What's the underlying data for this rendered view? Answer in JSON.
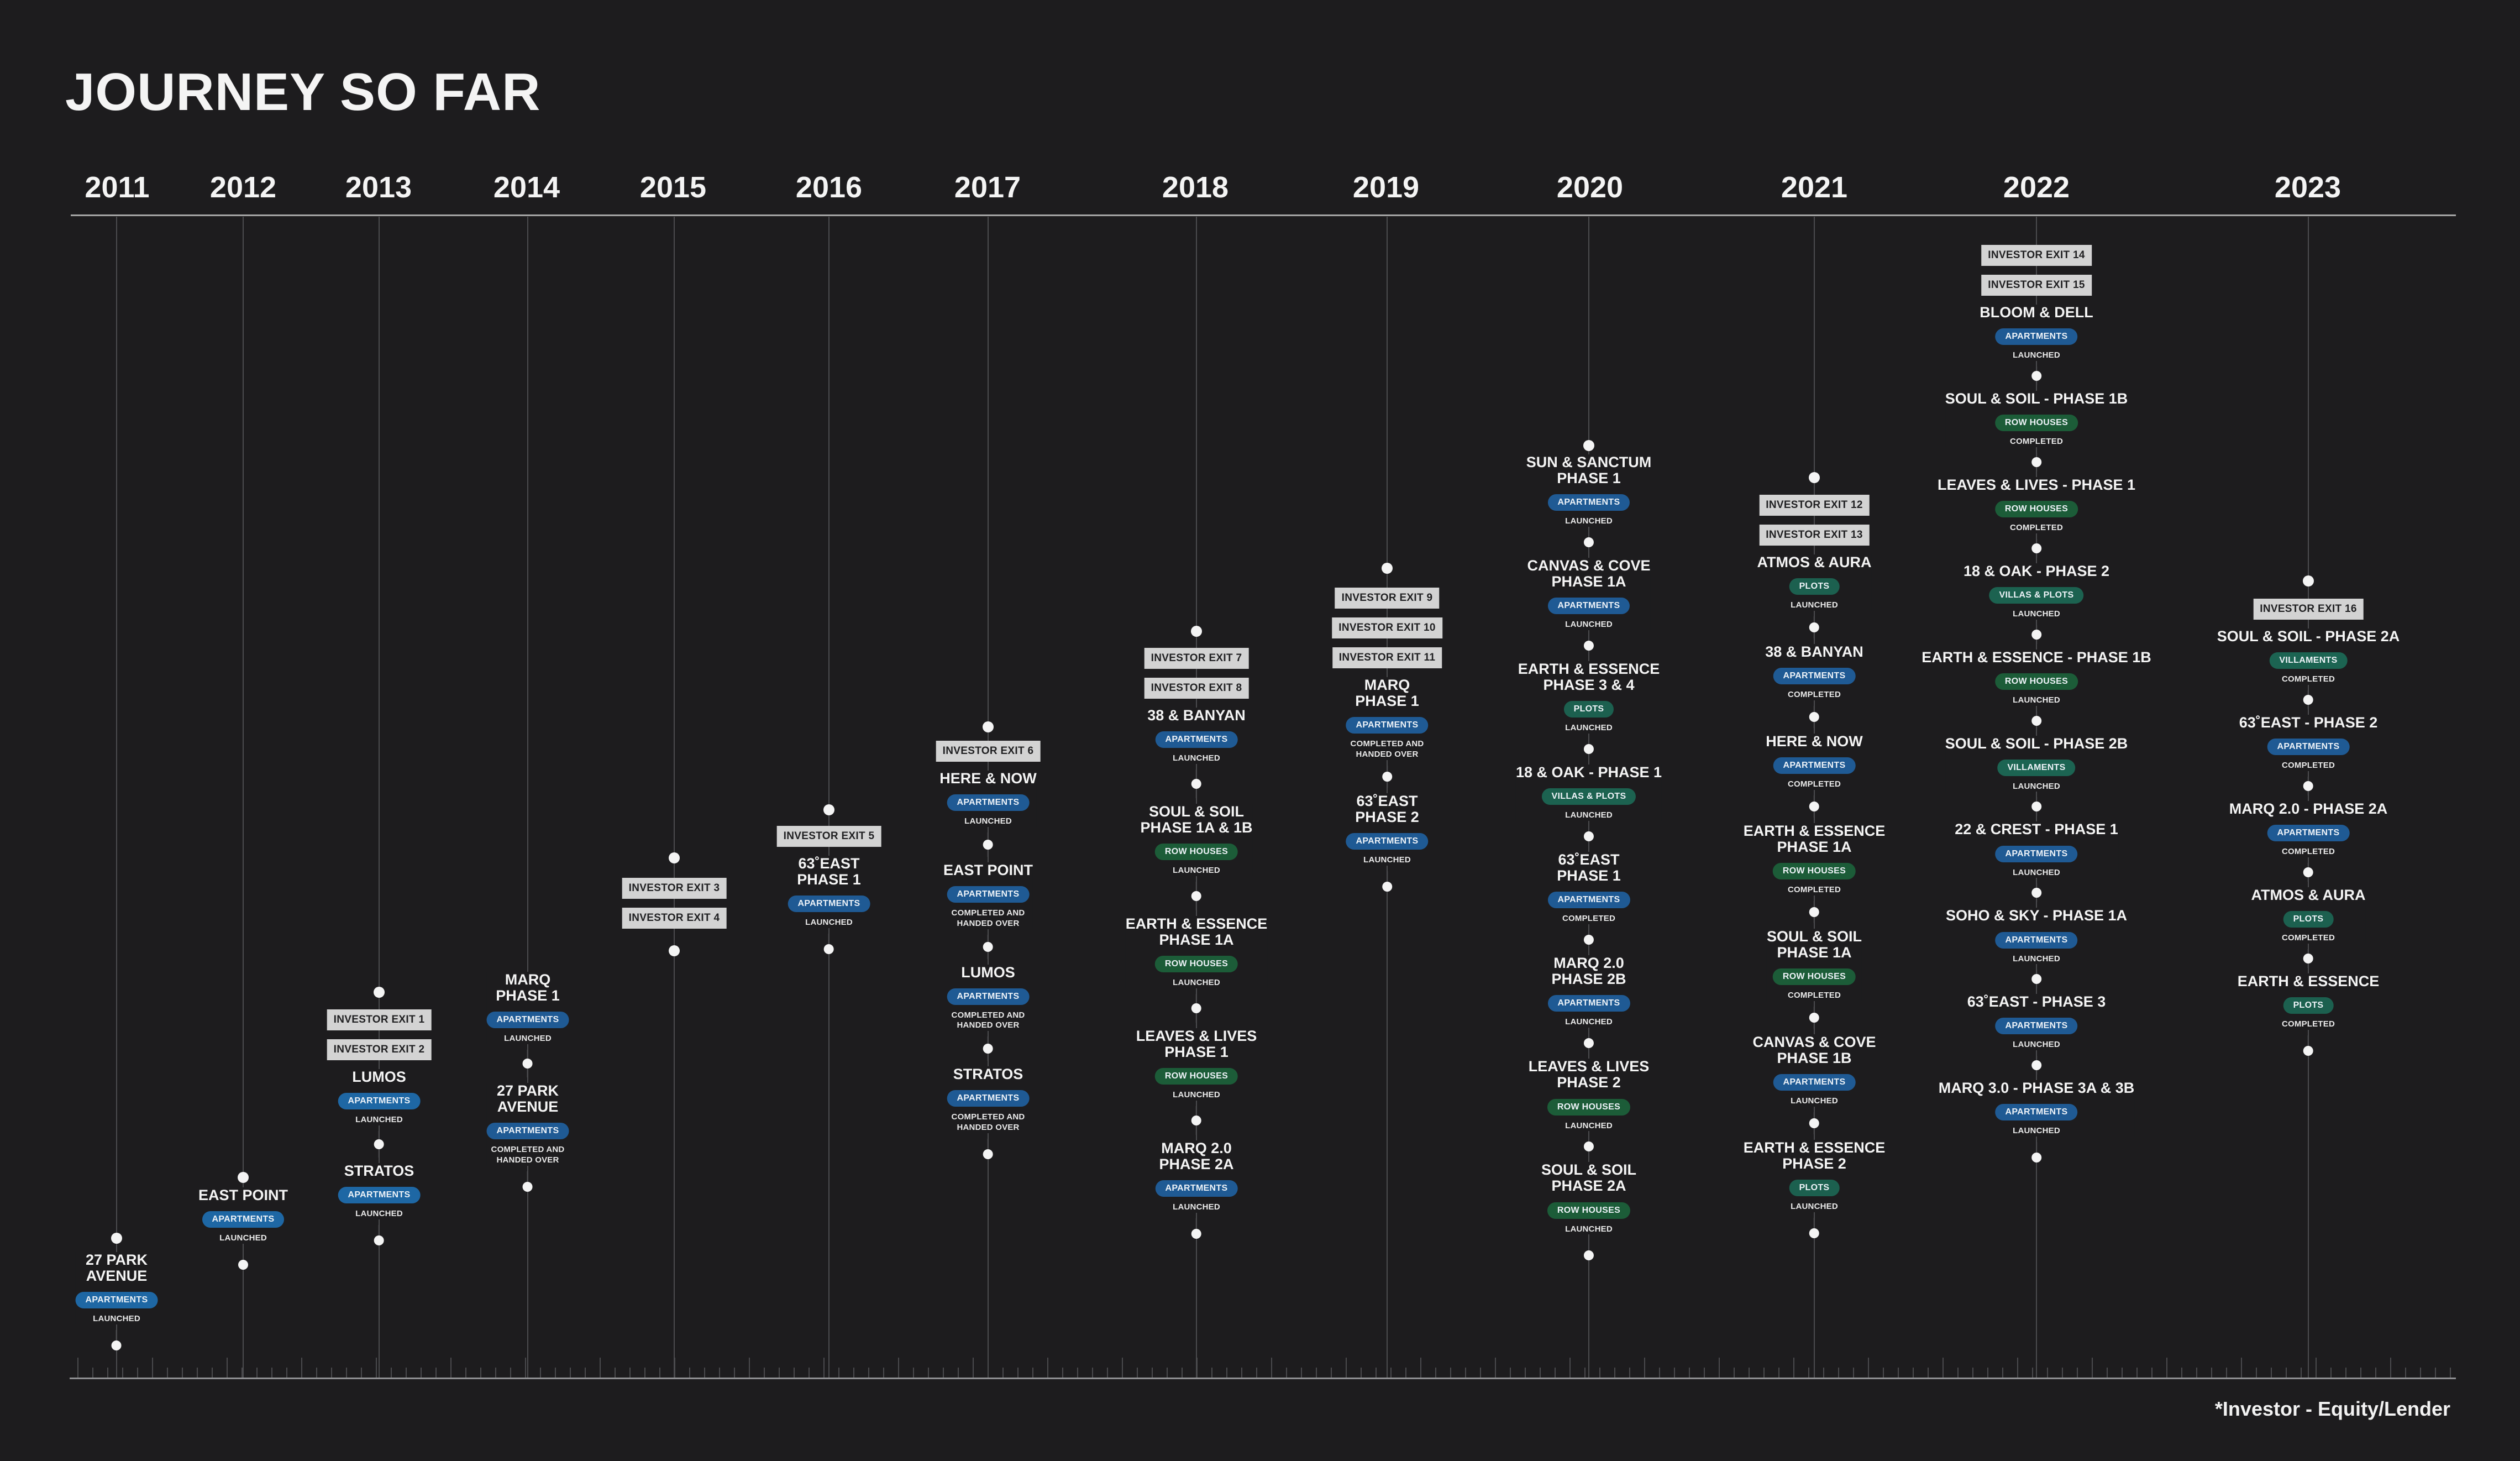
{
  "page": {
    "title": "JOURNEY SO  FAR",
    "footnote": "*Investor - Equity/Lender"
  },
  "years": [
    "2011",
    "2012",
    "2013",
    "2014",
    "2015",
    "2016",
    "2017",
    "2018",
    "2019",
    "2020",
    "2021",
    "2022",
    "2023"
  ],
  "columns": [
    {
      "year": "2011",
      "exits": [],
      "entries": [
        {
          "name": "27 PARK\nAVENUE",
          "type": "APARTMENTS",
          "type_class": "apartments-2011",
          "status": "LAUNCHED"
        }
      ]
    },
    {
      "year": "2012",
      "exits": [],
      "entries": [
        {
          "name": "EAST POINT",
          "type": "APARTMENTS",
          "type_class": "apartments-2011",
          "status": "LAUNCHED"
        }
      ]
    },
    {
      "year": "2013",
      "exits": [
        "INVESTOR EXIT 1",
        "INVESTOR EXIT 2"
      ],
      "entries": [
        {
          "name": "LUMOS",
          "type": "APARTMENTS",
          "type_class": "apartments-2011",
          "status": "LAUNCHED"
        },
        {
          "name": "STRATOS",
          "type": "APARTMENTS",
          "type_class": "apartments-2011",
          "status": "LAUNCHED"
        }
      ]
    },
    {
      "year": "2014",
      "exits": [],
      "entries": [
        {
          "name": "MARQ\nPHASE 1",
          "type": "APARTMENTS",
          "type_class": "apartments",
          "status": "LAUNCHED"
        },
        {
          "name": "27 PARK\nAVENUE",
          "type": "APARTMENTS",
          "type_class": "apartments",
          "status": "COMPLETED AND\nHANDED OVER"
        }
      ]
    },
    {
      "year": "2015",
      "exits": [
        "INVESTOR EXIT 3",
        "INVESTOR EXIT 4"
      ],
      "entries": []
    },
    {
      "year": "2016",
      "exits": [
        "INVESTOR EXIT 5"
      ],
      "entries": [
        {
          "name": "63˚EAST\nPHASE 1",
          "type": "APARTMENTS",
          "type_class": "apartments",
          "status": "LAUNCHED"
        }
      ]
    },
    {
      "year": "2017",
      "exits": [
        "INVESTOR EXIT 6"
      ],
      "entries": [
        {
          "name": "HERE & NOW",
          "type": "APARTMENTS",
          "type_class": "apartments",
          "status": "LAUNCHED"
        },
        {
          "name": "EAST POINT",
          "type": "APARTMENTS",
          "type_class": "apartments",
          "status": "COMPLETED AND\nHANDED OVER"
        },
        {
          "name": "LUMOS",
          "type": "APARTMENTS",
          "type_class": "apartments",
          "status": "COMPLETED AND\nHANDED OVER"
        },
        {
          "name": "STRATOS",
          "type": "APARTMENTS",
          "type_class": "apartments",
          "status": "COMPLETED AND\nHANDED OVER"
        }
      ]
    },
    {
      "year": "2018",
      "exits": [
        "INVESTOR EXIT 7",
        "INVESTOR EXIT 8"
      ],
      "entries": [
        {
          "name": "38 & BANYAN",
          "type": "APARTMENTS",
          "type_class": "apartments",
          "status": "LAUNCHED"
        },
        {
          "name": "SOUL & SOIL\nPHASE 1A & 1B",
          "type": "ROW HOUSES",
          "type_class": "rowhouses",
          "status": "LAUNCHED"
        },
        {
          "name": "EARTH & ESSENCE\nPHASE 1A",
          "type": "ROW HOUSES",
          "type_class": "rowhouses",
          "status": "LAUNCHED"
        },
        {
          "name": "LEAVES & LIVES\nPHASE 1",
          "type": "ROW HOUSES",
          "type_class": "rowhouses",
          "status": "LAUNCHED"
        },
        {
          "name": "MARQ 2.0\nPHASE 2A",
          "type": "APARTMENTS",
          "type_class": "apartments",
          "status": "LAUNCHED"
        }
      ]
    },
    {
      "year": "2019",
      "exits": [
        "INVESTOR EXIT 9",
        "INVESTOR EXIT 10",
        "INVESTOR EXIT 11"
      ],
      "entries": [
        {
          "name": "MARQ\nPHASE 1",
          "type": "APARTMENTS",
          "type_class": "apartments",
          "status": "COMPLETED AND\nHANDED OVER"
        },
        {
          "name": "63˚EAST\nPHASE 2",
          "type": "APARTMENTS",
          "type_class": "apartments",
          "status": "LAUNCHED"
        }
      ]
    },
    {
      "year": "2020",
      "exits": [],
      "entries": [
        {
          "name": "SUN & SANCTUM\nPHASE 1",
          "type": "APARTMENTS",
          "type_class": "apartments",
          "status": "LAUNCHED"
        },
        {
          "name": "CANVAS & COVE\nPHASE 1A",
          "type": "APARTMENTS",
          "type_class": "apartments",
          "status": "LAUNCHED"
        },
        {
          "name": "EARTH & ESSENCE\nPHASE 3 & 4",
          "type": "PLOTS",
          "type_class": "plots",
          "status": "LAUNCHED"
        },
        {
          "name": "18 & OAK - PHASE 1",
          "type": "VILLAS & PLOTS",
          "type_class": "villas",
          "status": "LAUNCHED"
        },
        {
          "name": "63˚EAST\nPHASE 1",
          "type": "APARTMENTS",
          "type_class": "apartments",
          "status": "COMPLETED"
        },
        {
          "name": "MARQ 2.0\nPHASE 2B",
          "type": "APARTMENTS",
          "type_class": "apartments",
          "status": "LAUNCHED"
        },
        {
          "name": "LEAVES & LIVES\nPHASE 2",
          "type": "ROW HOUSES",
          "type_class": "rowhouses",
          "status": "LAUNCHED"
        },
        {
          "name": "SOUL & SOIL\nPHASE 2A",
          "type": "ROW HOUSES",
          "type_class": "rowhouses",
          "status": "LAUNCHED"
        }
      ]
    },
    {
      "year": "2021",
      "exits": [
        "INVESTOR EXIT 12",
        "INVESTOR EXIT 13"
      ],
      "entries": [
        {
          "name": "ATMOS & AURA",
          "type": "PLOTS",
          "type_class": "plots",
          "status": "LAUNCHED"
        },
        {
          "name": "38 & BANYAN",
          "type": "APARTMENTS",
          "type_class": "apartments",
          "status": "COMPLETED"
        },
        {
          "name": "HERE & NOW",
          "type": "APARTMENTS",
          "type_class": "apartments",
          "status": "COMPLETED"
        },
        {
          "name": "EARTH & ESSENCE\nPHASE 1A",
          "type": "ROW HOUSES",
          "type_class": "rowhouses",
          "status": "COMPLETED"
        },
        {
          "name": "SOUL & SOIL\nPHASE 1A",
          "type": "ROW HOUSES",
          "type_class": "rowhouses",
          "status": "COMPLETED"
        },
        {
          "name": "CANVAS & COVE\nPHASE 1B",
          "type": "APARTMENTS",
          "type_class": "apartments",
          "status": "LAUNCHED"
        },
        {
          "name": "EARTH & ESSENCE\nPHASE 2",
          "type": "PLOTS",
          "type_class": "plots",
          "status": "LAUNCHED"
        }
      ]
    },
    {
      "year": "2022",
      "exits": [
        "INVESTOR EXIT 14",
        "INVESTOR EXIT 15"
      ],
      "entries": [
        {
          "name": "BLOOM & DELL",
          "type": "APARTMENTS",
          "type_class": "apartments",
          "status": "LAUNCHED"
        },
        {
          "name": "SOUL & SOIL - PHASE 1B",
          "type": "ROW HOUSES",
          "type_class": "rowhouses",
          "status": "COMPLETED"
        },
        {
          "name": "LEAVES & LIVES - PHASE 1",
          "type": "ROW HOUSES",
          "type_class": "rowhouses",
          "status": "COMPLETED"
        },
        {
          "name": "18 & OAK - PHASE 2",
          "type": "VILLAS & PLOTS",
          "type_class": "villas",
          "status": "LAUNCHED"
        },
        {
          "name": "EARTH & ESSENCE - PHASE 1B",
          "type": "ROW HOUSES",
          "type_class": "rowhouses",
          "status": "LAUNCHED"
        },
        {
          "name": "SOUL & SOIL - PHASE 2B",
          "type": "VILLAMENTS",
          "type_class": "villaments",
          "status": "LAUNCHED"
        },
        {
          "name": "22 & CREST - PHASE 1",
          "type": "APARTMENTS",
          "type_class": "apartments",
          "status": "LAUNCHED"
        },
        {
          "name": "SOHO & SKY - PHASE 1A",
          "type": "APARTMENTS",
          "type_class": "apartments",
          "status": "LAUNCHED"
        },
        {
          "name": "63˚EAST - PHASE 3",
          "type": "APARTMENTS",
          "type_class": "apartments",
          "status": "LAUNCHED"
        },
        {
          "name": "MARQ 3.0 - PHASE 3A & 3B",
          "type": "APARTMENTS",
          "type_class": "apartments",
          "status": "LAUNCHED"
        }
      ]
    },
    {
      "year": "2023",
      "exits": [
        "INVESTOR EXIT 16"
      ],
      "entries": [
        {
          "name": "SOUL & SOIL - PHASE 2A",
          "type": "VILLAMENTS",
          "type_class": "villaments",
          "status": "COMPLETED"
        },
        {
          "name": "63˚EAST - PHASE 2",
          "type": "APARTMENTS",
          "type_class": "apartments",
          "status": "COMPLETED"
        },
        {
          "name": "MARQ 2.0 - PHASE 2A",
          "type": "APARTMENTS",
          "type_class": "apartments",
          "status": "COMPLETED"
        },
        {
          "name": "ATMOS & AURA",
          "type": "PLOTS",
          "type_class": "plots",
          "status": "COMPLETED"
        },
        {
          "name": "EARTH & ESSENCE",
          "type": "PLOTS",
          "type_class": "plots",
          "status": "COMPLETED"
        }
      ]
    }
  ]
}
